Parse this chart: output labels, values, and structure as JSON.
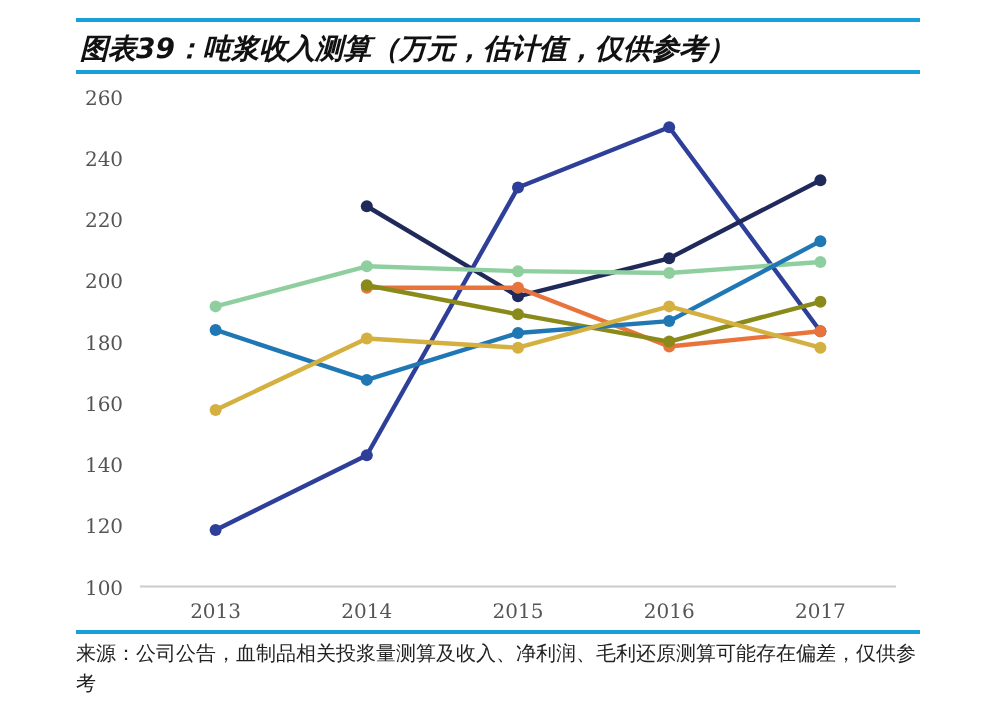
{
  "chart_data": {
    "type": "line",
    "title": "图表39：吨浆收入测算（万元，估计值，仅供参考）",
    "categories": [
      "2013",
      "2014",
      "2015",
      "2016",
      "2017"
    ],
    "series": [
      {
        "color": "#2e3f9a",
        "values": [
          118.5,
          142.9,
          230.3,
          250,
          183.4
        ]
      },
      {
        "color": "#1f2a5a",
        "values": [
          null,
          224.2,
          194.8,
          207.2,
          232.7
        ]
      },
      {
        "color": "#8fcf9f",
        "values": [
          191.5,
          204.6,
          203,
          202.4,
          206
        ]
      },
      {
        "color": "#e8743b",
        "values": [
          null,
          197.6,
          197.6,
          178.4,
          183.4
        ]
      },
      {
        "color": "#8a8a1a",
        "values": [
          null,
          198.4,
          188.9,
          180,
          193
        ]
      },
      {
        "color": "#1f77b4",
        "values": [
          183.8,
          167.5,
          182.8,
          186.7,
          212.8
        ]
      },
      {
        "color": "#d4b040",
        "values": [
          157.7,
          181,
          178,
          191.5,
          178
        ]
      }
    ],
    "ylim": [
      100,
      260
    ],
    "yticks": [
      100,
      120,
      140,
      160,
      180,
      200,
      220,
      240,
      260
    ],
    "marker": "circle",
    "grid": false,
    "annotations": [
      "来源：公司公告，血制品相关投浆量测算及收入、净利润、毛利还原测算可能存在偏差，仅供参考"
    ]
  }
}
